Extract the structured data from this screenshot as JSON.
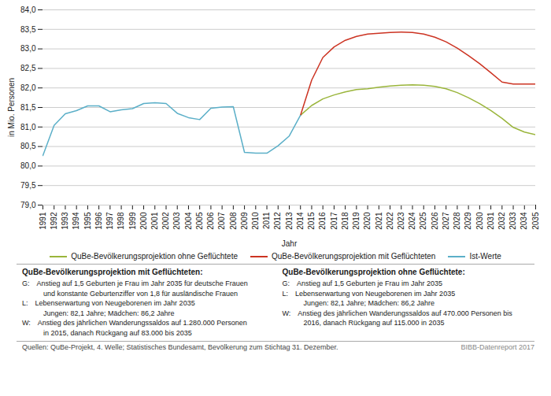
{
  "chart_data": {
    "type": "line",
    "xlabel": "Jahr",
    "ylabel": "in Mio. Personen",
    "xlim": [
      1991,
      2035
    ],
    "xticks": [
      1991,
      1992,
      1993,
      1994,
      1995,
      1996,
      1997,
      1998,
      1999,
      2000,
      2001,
      2002,
      2003,
      2004,
      2005,
      2006,
      2007,
      2008,
      2009,
      2010,
      2011,
      2012,
      2013,
      2014,
      2015,
      2016,
      2017,
      2018,
      2019,
      2020,
      2021,
      2022,
      2023,
      2024,
      2025,
      2026,
      2027,
      2028,
      2029,
      2030,
      2031,
      2032,
      2033,
      2034,
      2035
    ],
    "ylim": [
      79.0,
      84.0
    ],
    "yticks": [
      {
        "value": 79.0,
        "label": "79,0"
      },
      {
        "value": 79.5,
        "label": "79,5"
      },
      {
        "value": 80.0,
        "label": "80,0"
      },
      {
        "value": 80.5,
        "label": "80,5"
      },
      {
        "value": 81.0,
        "label": "81,0"
      },
      {
        "value": 81.5,
        "label": "81,5"
      },
      {
        "value": 82.0,
        "label": "82,0"
      },
      {
        "value": 82.5,
        "label": "82,5"
      },
      {
        "value": 83.0,
        "label": "83,0"
      },
      {
        "value": 83.5,
        "label": "83,5"
      },
      {
        "value": 84.0,
        "label": "84,0"
      }
    ],
    "grid": true,
    "legend": "bottom",
    "series": [
      {
        "name": "QuBe-Bevölkerungsprojektion ohne Geflüchtete",
        "color": "#9ab53b",
        "x": [
          2014,
          2015,
          2016,
          2017,
          2018,
          2019,
          2020,
          2021,
          2022,
          2023,
          2024,
          2025,
          2026,
          2027,
          2028,
          2029,
          2030,
          2031,
          2032,
          2033,
          2034,
          2035
        ],
        "values": [
          81.3,
          81.55,
          81.72,
          81.82,
          81.9,
          81.96,
          81.98,
          82.02,
          82.05,
          82.07,
          82.08,
          82.07,
          82.04,
          81.98,
          81.88,
          81.75,
          81.6,
          81.42,
          81.22,
          80.99,
          80.87,
          80.8
        ]
      },
      {
        "name": "QuBe-Bevölkerungsprojektion mit Geflüchteten",
        "color": "#cc3322",
        "x": [
          2014,
          2015,
          2016,
          2017,
          2018,
          2019,
          2020,
          2021,
          2022,
          2023,
          2024,
          2025,
          2026,
          2027,
          2028,
          2029,
          2030,
          2031,
          2032,
          2033,
          2034,
          2035
        ],
        "values": [
          81.3,
          82.2,
          82.78,
          83.05,
          83.22,
          83.32,
          83.38,
          83.4,
          83.42,
          83.43,
          83.42,
          83.38,
          83.3,
          83.18,
          83.02,
          82.83,
          82.62,
          82.39,
          82.15,
          82.1,
          82.1,
          82.1
        ]
      },
      {
        "name": "Ist-Werte",
        "color": "#5bafc8",
        "x": [
          1991,
          1992,
          1993,
          1994,
          1995,
          1996,
          1997,
          1998,
          1999,
          2000,
          2001,
          2002,
          2003,
          2004,
          2005,
          2006,
          2007,
          2008,
          2009,
          2010,
          2011,
          2012,
          2013,
          2014
        ],
        "values": [
          80.27,
          81.04,
          81.34,
          81.42,
          81.54,
          81.54,
          81.39,
          81.44,
          81.47,
          81.6,
          81.62,
          81.6,
          81.35,
          81.24,
          81.19,
          81.48,
          81.51,
          81.52,
          80.35,
          80.33,
          80.33,
          80.52,
          80.77,
          81.3
        ]
      }
    ],
    "text_blocks": [
      {
        "title": "QuBe-Bevölkerungsprojektion mit Geflüchteten:",
        "lines": [
          "G: Anstieg auf 1,5 Geburten je Frau im Jahr 2035 für deutsche Frauen",
          "   und konstante Geburtenziffer von 1,8 für ausländische Frauen",
          "L: Lebenserwartung von Neugeborenen im Jahr 2035",
          "   Jungen: 82,1 Jahre; Mädchen: 86,2 Jahre",
          "W: Anstieg des jährlichen Wanderungssaldos auf 1.280.000 Personen",
          "   in 2015, danach Rückgang auf 83.000 bis 2035"
        ]
      },
      {
        "title": "QuBe-Bevölkerungsprojektion ohne Geflüchtete:",
        "lines": [
          "G: Anstieg auf 1,5 Geburten je Frau im Jahr 2035",
          "L: Lebenserwartung von Neugeborenen im Jahr 2035",
          "   Jungen: 82,1 Jahre; Mädchen: 86,2 Jahre",
          "W: Anstieg des jährlichen Wanderungssaldos auf 470.000 Personen bis",
          "   2016, danach Rückgang auf 115.000 in 2035"
        ]
      }
    ],
    "source": "Quellen: QuBe-Projekt, 4. Welle; Statistisches Bundesamt, Bevölkerung zum Stichtag 31. Dezember.",
    "credit": "BIBB-Datenreport 2017"
  }
}
